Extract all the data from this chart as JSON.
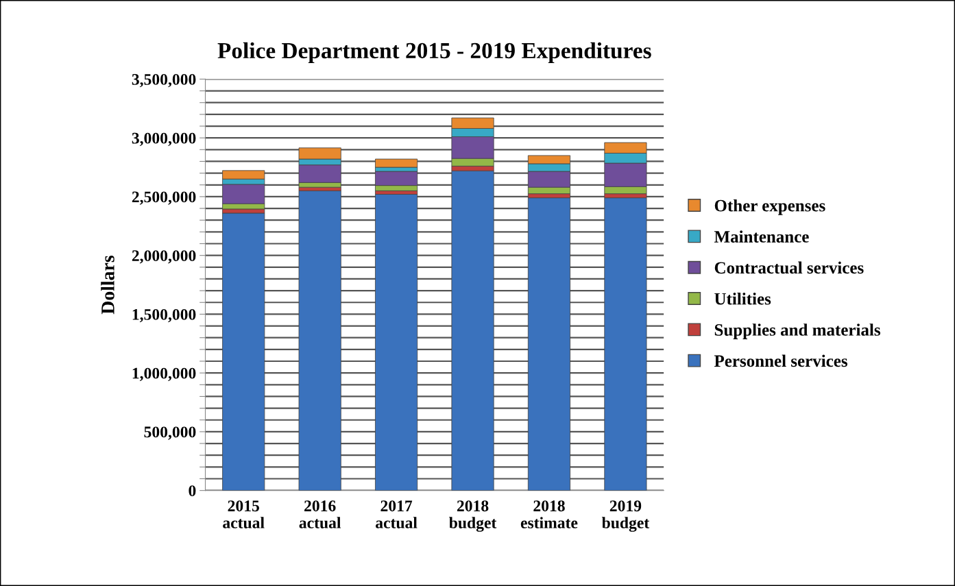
{
  "chart_data": {
    "type": "bar",
    "stacked": true,
    "title": "Police Department 2015 - 2019 Expenditures",
    "ylabel": "Dollars",
    "categories": [
      "2015\nactual",
      "2016\nactual",
      "2017\nactual",
      "2018\nbudget",
      "2018\nestimate",
      "2019\nbudget"
    ],
    "series": [
      {
        "name": "Personnel services",
        "color": "#3a72bd",
        "values": [
          2360000,
          2550000,
          2520000,
          2720000,
          2490000,
          2490000
        ]
      },
      {
        "name": "Supplies and materials",
        "color": "#c0403c",
        "values": [
          35000,
          30000,
          30000,
          40000,
          35000,
          35000
        ]
      },
      {
        "name": "Utilities",
        "color": "#93b848",
        "values": [
          45000,
          40000,
          45000,
          65000,
          55000,
          60000
        ]
      },
      {
        "name": "Contractual services",
        "color": "#6f4e9a",
        "values": [
          165000,
          150000,
          120000,
          185000,
          135000,
          200000
        ]
      },
      {
        "name": "Maintenance",
        "color": "#38a9c6",
        "values": [
          45000,
          50000,
          35000,
          70000,
          65000,
          85000
        ]
      },
      {
        "name": "Other expenses",
        "color": "#e8892e",
        "values": [
          72000,
          95000,
          70000,
          90000,
          70000,
          90000
        ]
      }
    ],
    "ylim": [
      0,
      3500000
    ],
    "yticks": [
      {
        "value": 0,
        "label": "0"
      },
      {
        "value": 100000,
        "label": null
      },
      {
        "value": 200000,
        "label": null
      },
      {
        "value": 300000,
        "label": null
      },
      {
        "value": 400000,
        "label": null
      },
      {
        "value": 500000,
        "label": "500,000"
      },
      {
        "value": 600000,
        "label": null
      },
      {
        "value": 700000,
        "label": null
      },
      {
        "value": 800000,
        "label": null
      },
      {
        "value": 900000,
        "label": null
      },
      {
        "value": 1000000,
        "label": "1,000,000"
      },
      {
        "value": 1100000,
        "label": null
      },
      {
        "value": 1200000,
        "label": null
      },
      {
        "value": 1300000,
        "label": null
      },
      {
        "value": 1400000,
        "label": null
      },
      {
        "value": 1500000,
        "label": "1,500,000"
      },
      {
        "value": 1600000,
        "label": null
      },
      {
        "value": 1700000,
        "label": null
      },
      {
        "value": 1800000,
        "label": null
      },
      {
        "value": 1900000,
        "label": null
      },
      {
        "value": 2000000,
        "label": "2,000,000"
      },
      {
        "value": 2100000,
        "label": null
      },
      {
        "value": 2200000,
        "label": null
      },
      {
        "value": 2300000,
        "label": null
      },
      {
        "value": 2400000,
        "label": null
      },
      {
        "value": 2500000,
        "label": "2,500,000"
      },
      {
        "value": 2600000,
        "label": null
      },
      {
        "value": 2700000,
        "label": null
      },
      {
        "value": 2800000,
        "label": null
      },
      {
        "value": 2900000,
        "label": null
      },
      {
        "value": 3000000,
        "label": "3,000,000"
      },
      {
        "value": 3100000,
        "label": null
      },
      {
        "value": 3200000,
        "label": null
      },
      {
        "value": 3300000,
        "label": null
      },
      {
        "value": 3400000,
        "label": null
      },
      {
        "value": 3500000,
        "label": "3,500,000"
      }
    ],
    "grid": "y",
    "legend": "right"
  }
}
